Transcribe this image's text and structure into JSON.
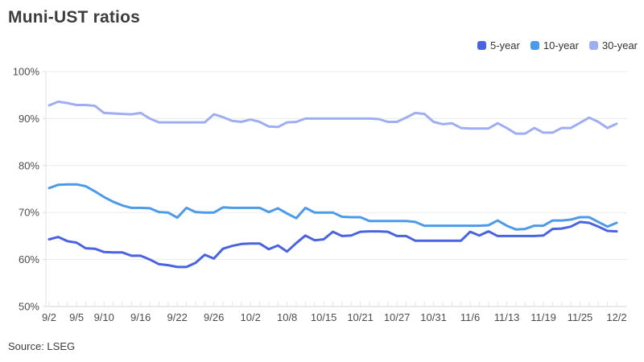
{
  "header": {
    "title": "Muni-UST ratios"
  },
  "footer": {
    "source": "Source: LSEG"
  },
  "legend": {
    "items": [
      {
        "label": "5-year",
        "color": "#4A63E0"
      },
      {
        "label": "10-year",
        "color": "#4D9BE8"
      },
      {
        "label": "30-year",
        "color": "#9FAEF2"
      }
    ]
  },
  "chart_data": {
    "type": "line",
    "title": "Muni-UST ratios",
    "xlabel": "",
    "ylabel": "",
    "ylim": [
      50,
      100
    ],
    "yticks": [
      50,
      60,
      70,
      80,
      90,
      100
    ],
    "ytick_suffix": "%",
    "grid": "horizontal",
    "legend_position": "top-right",
    "x": [
      "9/2",
      "9/3",
      "9/4",
      "9/5",
      "9/8",
      "9/9",
      "9/10",
      "9/11",
      "9/12",
      "9/15",
      "9/16",
      "9/17",
      "9/18",
      "9/19",
      "9/22",
      "9/23",
      "9/24",
      "9/25",
      "9/26",
      "9/29",
      "9/30",
      "10/1",
      "10/2",
      "10/3",
      "10/6",
      "10/7",
      "10/8",
      "10/9",
      "10/10",
      "10/14",
      "10/15",
      "10/16",
      "10/17",
      "10/20",
      "10/21",
      "10/22",
      "10/23",
      "10/24",
      "10/27",
      "10/28",
      "10/29",
      "10/30",
      "10/31",
      "11/3",
      "11/4",
      "11/5",
      "11/6",
      "11/7",
      "11/10",
      "11/12",
      "11/13",
      "11/14",
      "11/17",
      "11/18",
      "11/19",
      "11/20",
      "11/21",
      "11/24",
      "11/25",
      "11/26",
      "11/28",
      "12/1",
      "12/2"
    ],
    "xtick_labels": [
      "9/2",
      "9/5",
      "9/10",
      "9/16",
      "9/22",
      "9/26",
      "10/2",
      "10/8",
      "10/15",
      "10/21",
      "10/27",
      "10/31",
      "11/6",
      "11/13",
      "11/19",
      "11/25",
      "12/2"
    ],
    "xtick_indices": [
      0,
      3,
      6,
      10,
      14,
      18,
      22,
      26,
      30,
      34,
      38,
      42,
      46,
      50,
      54,
      58,
      62
    ],
    "series": [
      {
        "name": "5-year",
        "color": "#4A63E0",
        "values": [
          64.3,
          64.8,
          63.9,
          63.6,
          62.4,
          62.3,
          61.6,
          61.5,
          61.5,
          60.8,
          60.8,
          60.0,
          59.0,
          58.8,
          58.4,
          58.4,
          59.3,
          61.0,
          60.2,
          62.3,
          62.9,
          63.3,
          63.4,
          63.4,
          62.2,
          63.0,
          61.7,
          63.5,
          65.1,
          64.1,
          64.3,
          65.9,
          65.0,
          65.1,
          65.9,
          66.0,
          66.0,
          65.9,
          65.0,
          65.0,
          64.0,
          64.0,
          64.0,
          64.0,
          64.0,
          64.0,
          65.9,
          65.1,
          66.0,
          65.0,
          65.0,
          65.0,
          65.0,
          65.0,
          65.1,
          66.5,
          66.6,
          67.0,
          68.0,
          67.8,
          67.0,
          66.1,
          66.0
        ]
      },
      {
        "name": "10-year",
        "color": "#4D9BE8",
        "values": [
          75.2,
          75.9,
          76.0,
          76.0,
          75.6,
          74.5,
          73.3,
          72.3,
          71.5,
          71.0,
          71.0,
          70.9,
          70.1,
          70.0,
          68.9,
          71.0,
          70.1,
          70.0,
          70.0,
          71.1,
          71.0,
          71.0,
          71.0,
          71.0,
          70.1,
          70.9,
          69.8,
          68.8,
          71.0,
          70.0,
          70.0,
          70.0,
          69.1,
          69.0,
          69.0,
          68.2,
          68.2,
          68.2,
          68.2,
          68.2,
          68.0,
          67.2,
          67.2,
          67.2,
          67.2,
          67.2,
          67.2,
          67.2,
          67.3,
          68.3,
          67.2,
          66.4,
          66.5,
          67.2,
          67.2,
          68.3,
          68.3,
          68.5,
          69.0,
          69.0,
          68.0,
          67.0,
          67.8
        ]
      },
      {
        "name": "30-year",
        "color": "#9FAEF2",
        "values": [
          92.8,
          93.6,
          93.3,
          92.9,
          92.9,
          92.7,
          91.2,
          91.1,
          91.0,
          90.9,
          91.2,
          90.0,
          89.2,
          89.2,
          89.2,
          89.2,
          89.2,
          89.2,
          90.9,
          90.3,
          89.5,
          89.3,
          89.8,
          89.3,
          88.3,
          88.2,
          89.2,
          89.3,
          90.0,
          90.0,
          90.0,
          90.0,
          90.0,
          90.0,
          90.0,
          90.0,
          89.9,
          89.3,
          89.3,
          90.2,
          91.2,
          91.0,
          89.3,
          88.8,
          89.0,
          88.0,
          87.9,
          87.9,
          87.9,
          89.0,
          88.0,
          86.8,
          86.8,
          88.0,
          87.0,
          87.0,
          88.0,
          88.0,
          89.1,
          90.2,
          89.3,
          88.0,
          88.9
        ]
      }
    ]
  }
}
